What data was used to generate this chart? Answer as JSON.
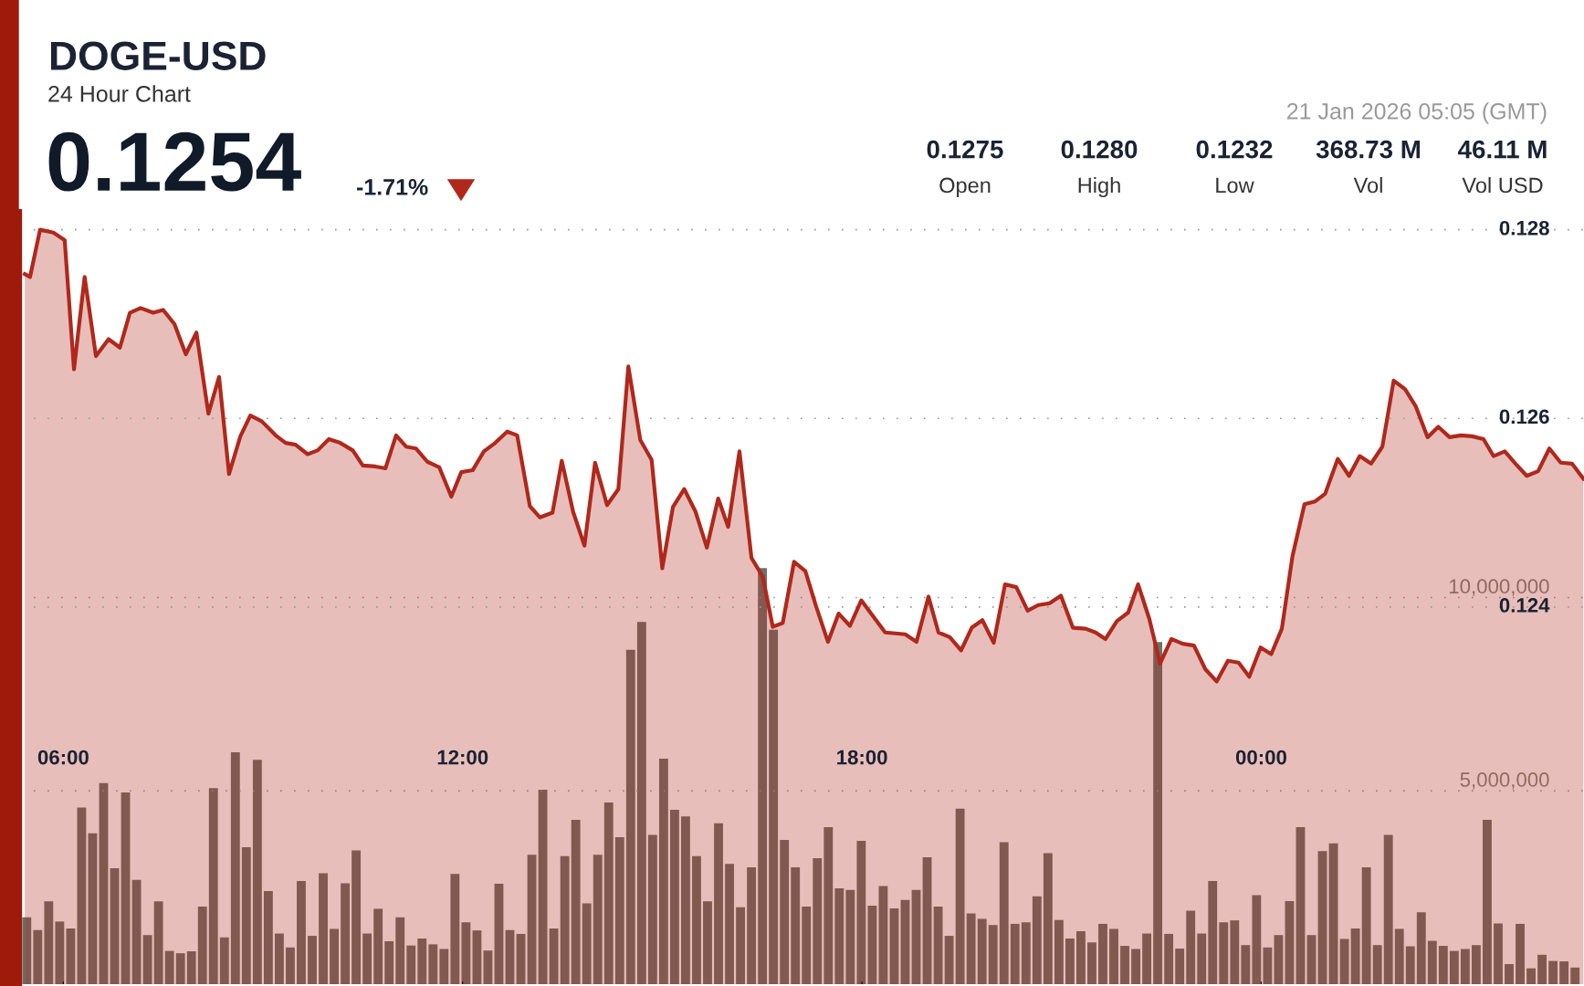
{
  "chart_data": {
    "type": "area",
    "title": "DOGE-USD",
    "subtitle": "24 Hour Chart",
    "annotations": [
      "0.1254",
      "-1.71%",
      "21 Jan 2026 05:05 (GMT)",
      "0.1275",
      "Open",
      "0.1280",
      "High",
      "0.1232",
      "Low",
      "368.73 M",
      "Vol",
      "46.11 M",
      "Vol USD"
    ],
    "xlim": [
      5.35,
      28.85
    ],
    "xticks": [
      {
        "value": 6,
        "label": "06:00"
      },
      {
        "value": 12,
        "label": "12:00"
      },
      {
        "value": 18,
        "label": "18:00"
      },
      {
        "value": 24,
        "label": "00:00"
      }
    ],
    "ylim": [
      0.12,
      0.1282
    ],
    "yticks": [
      0.124,
      0.126,
      0.128
    ],
    "y2lim": [
      0,
      20000000
    ],
    "y2ticks": [
      {
        "value": 5000000,
        "label": "5,000,000"
      },
      {
        "value": 10000000,
        "label": "10,000,000"
      }
    ],
    "grid": "y",
    "marker": "none",
    "line_style": "solid",
    "series": [
      {
        "color": "#b0281c",
        "x": [
          5.42,
          5.5,
          5.65,
          5.85,
          6.02,
          6.16,
          6.32,
          6.49,
          6.68,
          6.85,
          7.0,
          7.16,
          7.35,
          7.5,
          7.67,
          7.84,
          8.0,
          8.18,
          8.34,
          8.49,
          8.66,
          8.81,
          8.98,
          9.19,
          9.34,
          9.49,
          9.67,
          9.82,
          9.99,
          10.16,
          10.35,
          10.5,
          10.69,
          10.84,
          11.0,
          11.15,
          11.3,
          11.47,
          11.65,
          11.83,
          11.98,
          12.15,
          12.32,
          12.49,
          12.67,
          12.82,
          13.01,
          13.16,
          13.35,
          13.49,
          13.66,
          13.83,
          13.99,
          14.17,
          14.34,
          14.49,
          14.67,
          14.84,
          15.0,
          15.16,
          15.33,
          15.5,
          15.67,
          15.84,
          15.99,
          16.16,
          16.34,
          16.51,
          16.66,
          16.81,
          16.98,
          17.15,
          17.31,
          17.49,
          17.65,
          17.82,
          17.99,
          18.16,
          18.35,
          18.5,
          18.65,
          18.82,
          19.0,
          19.15,
          19.32,
          19.49,
          19.65,
          19.81,
          19.98,
          20.15,
          20.32,
          20.49,
          20.65,
          20.82,
          20.99,
          21.17,
          21.36,
          21.51,
          21.66,
          21.83,
          22.0,
          22.15,
          22.32,
          22.48,
          22.65,
          22.82,
          22.99,
          23.16,
          23.33,
          23.5,
          23.66,
          23.82,
          23.99,
          24.15,
          24.31,
          24.47,
          24.65,
          24.81,
          24.96,
          25.15,
          25.32,
          25.48,
          25.65,
          25.82,
          25.99,
          26.16,
          26.32,
          26.5,
          26.66,
          26.83,
          27.0,
          27.17,
          27.34,
          27.49,
          27.66,
          27.82,
          27.99,
          28.16,
          28.33,
          28.5,
          28.67,
          28.84
        ],
        "values": [
          0.12753,
          0.1275,
          0.128,
          0.12797,
          0.12789,
          0.12652,
          0.1275,
          0.12666,
          0.12684,
          0.12675,
          0.12712,
          0.12717,
          0.12712,
          0.12715,
          0.127,
          0.12668,
          0.12691,
          0.12605,
          0.12644,
          0.12541,
          0.12581,
          0.12603,
          0.12597,
          0.12582,
          0.12574,
          0.12572,
          0.12562,
          0.12566,
          0.12578,
          0.12574,
          0.12566,
          0.1255,
          0.12549,
          0.12547,
          0.12582,
          0.1257,
          0.12568,
          0.12554,
          0.12548,
          0.12517,
          0.12543,
          0.12545,
          0.12565,
          0.12574,
          0.12586,
          0.12582,
          0.12507,
          0.12495,
          0.125,
          0.12555,
          0.12501,
          0.12465,
          0.12553,
          0.12508,
          0.12525,
          0.12655,
          0.12577,
          0.12556,
          0.12441,
          0.12506,
          0.12525,
          0.12501,
          0.12463,
          0.12515,
          0.12485,
          0.12565,
          0.12452,
          0.12432,
          0.12379,
          0.12383,
          0.12448,
          0.12438,
          0.12401,
          0.12363,
          0.12393,
          0.1238,
          0.12407,
          0.12391,
          0.12373,
          0.12372,
          0.12371,
          0.12363,
          0.12411,
          0.12373,
          0.12368,
          0.12354,
          0.12378,
          0.12386,
          0.12362,
          0.12424,
          0.12421,
          0.12396,
          0.12402,
          0.12404,
          0.12412,
          0.12378,
          0.12377,
          0.12373,
          0.12366,
          0.12385,
          0.12394,
          0.12424,
          0.12387,
          0.1234,
          0.12366,
          0.12361,
          0.12359,
          0.12334,
          0.12321,
          0.12343,
          0.12341,
          0.12326,
          0.12357,
          0.1235,
          0.12377,
          0.12454,
          0.12509,
          0.12512,
          0.1252,
          0.12557,
          0.12539,
          0.1256,
          0.12552,
          0.1257,
          0.1264,
          0.12631,
          0.12613,
          0.1258,
          0.12591,
          0.1258,
          0.12582,
          0.12581,
          0.12578,
          0.1256,
          0.12565,
          0.12552,
          0.12539,
          0.12544,
          0.12568,
          0.12553,
          0.12552,
          0.12536
        ]
      },
      {
        "type": "bar",
        "axis": "y2",
        "color": "#6e6f68",
        "x": [
          5.45,
          5.615,
          5.78,
          5.945,
          6.11,
          6.275,
          6.44,
          6.605,
          6.77,
          6.935,
          7.1,
          7.265,
          7.43,
          7.595,
          7.76,
          7.925,
          8.09,
          8.255,
          8.42,
          8.585,
          8.75,
          8.915,
          9.08,
          9.245,
          9.41,
          9.575,
          9.74,
          9.905,
          10.07,
          10.235,
          10.4,
          10.565,
          10.73,
          10.895,
          11.06,
          11.225,
          11.39,
          11.555,
          11.72,
          11.885,
          12.05,
          12.215,
          12.38,
          12.545,
          12.71,
          12.875,
          13.04,
          13.205,
          13.37,
          13.535,
          13.7,
          13.865,
          14.03,
          14.195,
          14.36,
          14.525,
          14.69,
          14.855,
          15.02,
          15.185,
          15.35,
          15.515,
          15.68,
          15.845,
          16.01,
          16.175,
          16.34,
          16.505,
          16.67,
          16.835,
          17.0,
          17.165,
          17.33,
          17.495,
          17.66,
          17.825,
          17.99,
          18.155,
          18.32,
          18.485,
          18.65,
          18.815,
          18.98,
          19.145,
          19.31,
          19.475,
          19.64,
          19.805,
          19.97,
          20.135,
          20.3,
          20.465,
          20.63,
          20.795,
          20.96,
          21.125,
          21.29,
          21.455,
          21.62,
          21.785,
          21.95,
          22.115,
          22.28,
          22.445,
          22.61,
          22.775,
          22.94,
          23.105,
          23.27,
          23.435,
          23.6,
          23.765,
          23.93,
          24.095,
          24.26,
          24.425,
          24.59,
          24.755,
          24.92,
          25.085,
          25.25,
          25.415,
          25.58,
          25.745,
          25.91,
          26.075,
          26.24,
          26.405,
          26.57,
          26.735,
          26.9,
          27.065,
          27.23,
          27.395,
          27.56,
          27.725,
          27.89,
          28.055,
          28.22,
          28.385,
          28.55,
          28.715
        ],
        "values": [
          1730000.0,
          1400000.0,
          2140000.0,
          1620000.0,
          1440000.0,
          4570000.0,
          3900000.0,
          5200000.0,
          3000000.0,
          4960000.0,
          2700000.0,
          1270000.0,
          2140000.0,
          860000.0,
          800000.0,
          850000.0,
          2010000.0,
          5070000.0,
          1210000.0,
          6000000.0,
          3540000.0,
          5800000.0,
          2410000.0,
          1310000.0,
          950000.0,
          2670000.0,
          1250000.0,
          2870000.0,
          1430000.0,
          2610000.0,
          3460000.0,
          1310000.0,
          1950000.0,
          1110000.0,
          1730000.0,
          1000000.0,
          1180000.0,
          1030000.0,
          910000.0,
          2850000.0,
          1600000.0,
          1390000.0,
          870000.0,
          2600000.0,
          1400000.0,
          1300000.0,
          3350000.0,
          5030000.0,
          1440000.0,
          3310000.0,
          4250000.0,
          2090000.0,
          3350000.0,
          4700000.0,
          3800000.0,
          8650000.0,
          9370000.0,
          3860000.0,
          5830000.0,
          4510000.0,
          4340000.0,
          3310000.0,
          2140000.0,
          4160000.0,
          3110000.0,
          1990000.0,
          3020000.0,
          10760000.0,
          9170000.0,
          3730000.0,
          3020000.0,
          2010000.0,
          3260000.0,
          4060000.0,
          2480000.0,
          2440000.0,
          3710000.0,
          2030000.0,
          2540000.0,
          1960000.0,
          2180000.0,
          2440000.0,
          3280000.0,
          2010000.0,
          1250000.0,
          4540000.0,
          1830000.0,
          1690000.0,
          1530000.0,
          3670000.0,
          1560000.0,
          1600000.0,
          2270000.0,
          3390000.0,
          1660000.0,
          1180000.0,
          1370000.0,
          1080000.0,
          1560000.0,
          1430000.0,
          990000.0,
          910000.0,
          1310000.0,
          8850000.0,
          1300000.0,
          920000.0,
          1900000.0,
          1310000.0,
          2670000.0,
          1600000.0,
          1650000.0,
          1010000.0,
          2300000.0,
          950000.0,
          1270000.0,
          2150000.0,
          4060000.0,
          1270000.0,
          3440000.0,
          3640000.0,
          1170000.0,
          1440000.0,
          3020000.0,
          1010000.0,
          3860000.0,
          1430000.0,
          980000.0,
          1860000.0,
          1120000.0,
          990000.0,
          860000.0,
          910000.0,
          1010000.0,
          4250000.0,
          1570000.0,
          520000.0,
          1560000.0,
          410000.0,
          760000.0,
          600000.0,
          590000.0,
          430000.0
        ]
      }
    ]
  }
}
